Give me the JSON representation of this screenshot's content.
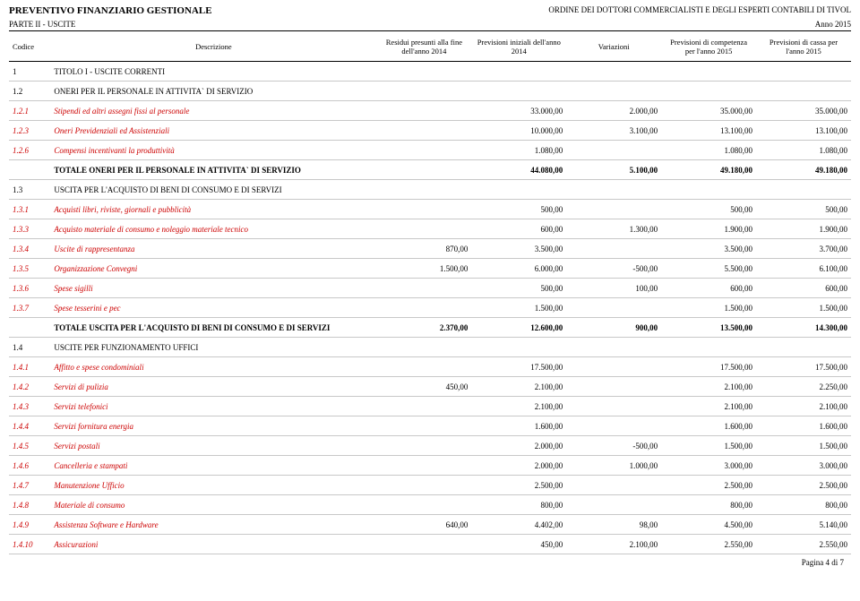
{
  "header": {
    "title_left": "PREVENTIVO FINANZIARIO GESTIONALE",
    "title_right": "ORDINE DEI DOTTORI COMMERCIALISTI E DEGLI ESPERTI CONTABILI DI TIVOL",
    "part": "PARTE II - USCITE",
    "year": "Anno 2015"
  },
  "columns": {
    "codice": "Codice",
    "descr": "Descrizione",
    "residui": "Residui presunti alla fine dell'anno 2014",
    "prev_iniz": "Previsioni iniziali dell'anno 2014",
    "variaz": "Variazioni",
    "prev_comp": "Previsioni di competenza per l'anno 2015",
    "prev_cassa": "Previsioni di cassa per l'anno 2015"
  },
  "rows": [
    {
      "type": "sec",
      "code": "1",
      "desc": "TITOLO I - USCITE CORRENTI"
    },
    {
      "type": "sec",
      "code": "1.2",
      "desc": "ONERI PER IL PERSONALE IN ATTIVITA` DI SERVIZIO"
    },
    {
      "type": "it",
      "code": "1.2.1",
      "desc": "Stipendi ed altri assegni fissi al personale",
      "c1": "",
      "c2": "33.000,00",
      "c3": "2.000,00",
      "c4": "35.000,00",
      "c5": "35.000,00"
    },
    {
      "type": "it",
      "code": "1.2.3",
      "desc": "Oneri Previdenziali ed Assistenziali",
      "c1": "",
      "c2": "10.000,00",
      "c3": "3.100,00",
      "c4": "13.100,00",
      "c5": "13.100,00"
    },
    {
      "type": "it",
      "code": "1.2.6",
      "desc": "Compensi incentivanti la produttività",
      "c1": "",
      "c2": "1.080,00",
      "c3": "",
      "c4": "1.080,00",
      "c5": "1.080,00"
    },
    {
      "type": "tot",
      "code": "",
      "desc": "TOTALE ONERI PER IL PERSONALE IN ATTIVITA` DI SERVIZIO",
      "c1": "",
      "c2": "44.080,00",
      "c3": "5.100,00",
      "c4": "49.180,00",
      "c5": "49.180,00"
    },
    {
      "type": "sec",
      "code": "1.3",
      "desc": "USCITA PER L'ACQUISTO DI BENI DI CONSUMO E DI SERVIZI"
    },
    {
      "type": "it",
      "code": "1.3.1",
      "desc": "Acquisti libri, riviste, giornali e pubblicità",
      "c1": "",
      "c2": "500,00",
      "c3": "",
      "c4": "500,00",
      "c5": "500,00"
    },
    {
      "type": "it",
      "code": "1.3.3",
      "desc": "Acquisto materiale di consumo e noleggio materiale tecnico",
      "c1": "",
      "c2": "600,00",
      "c3": "1.300,00",
      "c4": "1.900,00",
      "c5": "1.900,00"
    },
    {
      "type": "it",
      "code": "1.3.4",
      "desc": "Uscite di rappresentanza",
      "c1": "870,00",
      "c2": "3.500,00",
      "c3": "",
      "c4": "3.500,00",
      "c5": "3.700,00"
    },
    {
      "type": "it",
      "code": "1.3.5",
      "desc": "Organizzazione Convegni",
      "c1": "1.500,00",
      "c2": "6.000,00",
      "c3": "-500,00",
      "c4": "5.500,00",
      "c5": "6.100,00"
    },
    {
      "type": "it",
      "code": "1.3.6",
      "desc": "Spese sigilli",
      "c1": "",
      "c2": "500,00",
      "c3": "100,00",
      "c4": "600,00",
      "c5": "600,00"
    },
    {
      "type": "it",
      "code": "1.3.7",
      "desc": "Spese tesserini e pec",
      "c1": "",
      "c2": "1.500,00",
      "c3": "",
      "c4": "1.500,00",
      "c5": "1.500,00"
    },
    {
      "type": "tot",
      "code": "",
      "desc": "TOTALE USCITA PER L'ACQUISTO DI BENI DI CONSUMO E DI SERVIZI",
      "c1": "2.370,00",
      "c2": "12.600,00",
      "c3": "900,00",
      "c4": "13.500,00",
      "c5": "14.300,00"
    },
    {
      "type": "sec",
      "code": "1.4",
      "desc": "USCITE PER FUNZIONAMENTO UFFICI"
    },
    {
      "type": "it",
      "code": "1.4.1",
      "desc": "Affitto e spese condominiali",
      "c1": "",
      "c2": "17.500,00",
      "c3": "",
      "c4": "17.500,00",
      "c5": "17.500,00"
    },
    {
      "type": "it",
      "code": "1.4.2",
      "desc": "Servizi di pulizia",
      "c1": "450,00",
      "c2": "2.100,00",
      "c3": "",
      "c4": "2.100,00",
      "c5": "2.250,00"
    },
    {
      "type": "it",
      "code": "1.4.3",
      "desc": "Servizi telefonici",
      "c1": "",
      "c2": "2.100,00",
      "c3": "",
      "c4": "2.100,00",
      "c5": "2.100,00"
    },
    {
      "type": "it",
      "code": "1.4.4",
      "desc": "Servizi fornitura energia",
      "c1": "",
      "c2": "1.600,00",
      "c3": "",
      "c4": "1.600,00",
      "c5": "1.600,00"
    },
    {
      "type": "it",
      "code": "1.4.5",
      "desc": "Servizi postali",
      "c1": "",
      "c2": "2.000,00",
      "c3": "-500,00",
      "c4": "1.500,00",
      "c5": "1.500,00"
    },
    {
      "type": "it",
      "code": "1.4.6",
      "desc": "Cancelleria e stampati",
      "c1": "",
      "c2": "2.000,00",
      "c3": "1.000,00",
      "c4": "3.000,00",
      "c5": "3.000,00"
    },
    {
      "type": "it",
      "code": "1.4.7",
      "desc": "Manutenzione Ufficio",
      "c1": "",
      "c2": "2.500,00",
      "c3": "",
      "c4": "2.500,00",
      "c5": "2.500,00"
    },
    {
      "type": "it",
      "code": "1.4.8",
      "desc": "Materiale di consumo",
      "c1": "",
      "c2": "800,00",
      "c3": "",
      "c4": "800,00",
      "c5": "800,00"
    },
    {
      "type": "it",
      "code": "1.4.9",
      "desc": "Assistenza Software e Hardware",
      "c1": "640,00",
      "c2": "4.402,00",
      "c3": "98,00",
      "c4": "4.500,00",
      "c5": "5.140,00"
    },
    {
      "type": "it",
      "code": "1.4.10",
      "desc": "Assicurazioni",
      "c1": "",
      "c2": "450,00",
      "c3": "2.100,00",
      "c4": "2.550,00",
      "c5": "2.550,00"
    }
  ],
  "footer": "Pagina 4 di 7"
}
